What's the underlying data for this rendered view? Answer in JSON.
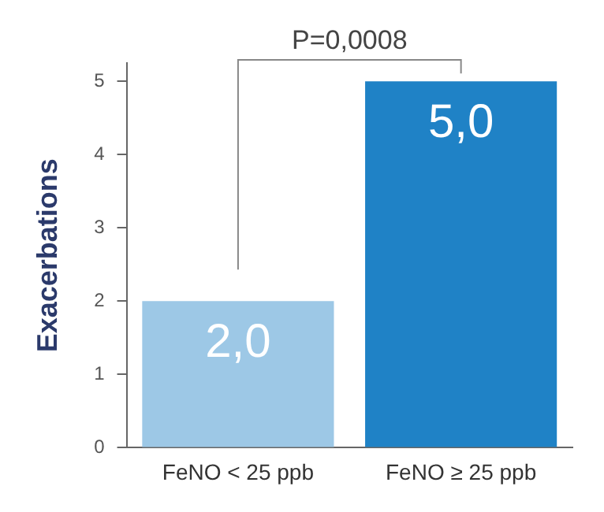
{
  "chart_data": {
    "type": "bar",
    "ylabel": "Exacerbations",
    "categories": [
      "FeNO < 25 ppb",
      "FeNO ≥ 25 ppb"
    ],
    "values": [
      2.0,
      5.0
    ],
    "colors": [
      "#9dc8e6",
      "#1f82c6"
    ],
    "value_labels": [
      "2,0",
      "5,0"
    ],
    "ylim": [
      0,
      5.25
    ],
    "yticks": [
      0,
      1,
      2,
      3,
      4,
      5
    ],
    "grid": false,
    "annotations": [
      "P=0,0008"
    ]
  }
}
